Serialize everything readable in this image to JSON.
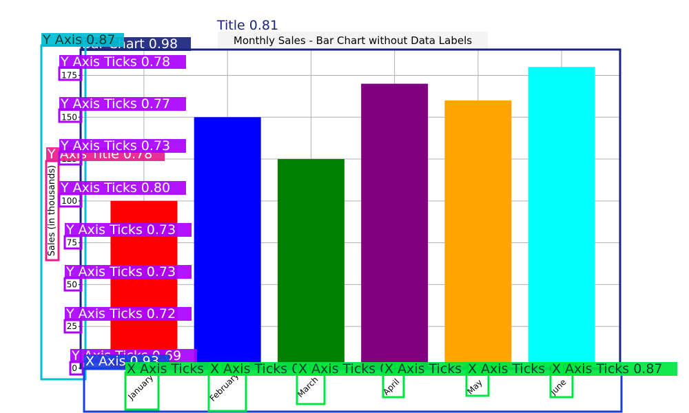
{
  "chart_data": {
    "type": "bar",
    "title": "Monthly Sales - Bar Chart without Data Labels",
    "ylabel": "Sales (in thousands)",
    "xlabel": "",
    "categories": [
      "January",
      "February",
      "March",
      "April",
      "May",
      "June"
    ],
    "values": [
      100,
      150,
      125,
      170,
      160,
      180
    ],
    "bar_colors": [
      "#ff0000",
      "#0000ff",
      "#008000",
      "#800080",
      "#ffa500",
      "#00ffff"
    ],
    "ylim": [
      0,
      190
    ],
    "yticks": [
      0,
      25,
      50,
      75,
      100,
      125,
      150,
      175
    ],
    "ytick_labels": [
      "0",
      "25",
      "50",
      "75",
      "100",
      "125",
      "150",
      "175"
    ],
    "grid": true,
    "legend": "none"
  },
  "annotations": [
    {
      "label": "Title 0.81",
      "color": "#1a237e"
    },
    {
      "label": "Bar Chart 0.98",
      "color": "#1a237e"
    },
    {
      "label": "Y Axis 0.87",
      "color": "#00bcd4"
    },
    {
      "label": "Y Axis Title 0.78",
      "color": "#e91e8c"
    },
    {
      "label": "Y Axis Ticks 0.78",
      "color": "#aa00ff"
    },
    {
      "label": "Y Axis Ticks 0.77",
      "color": "#aa00ff"
    },
    {
      "label": "Y Axis Ticks 0.73",
      "color": "#aa00ff"
    },
    {
      "label": "Y Axis Ticks 0.80",
      "color": "#aa00ff"
    },
    {
      "label": "Y Axis Ticks 0.73",
      "color": "#aa00ff"
    },
    {
      "label": "Y Axis Ticks 0.73",
      "color": "#aa00ff"
    },
    {
      "label": "Y Axis Ticks 0.72",
      "color": "#aa00ff"
    },
    {
      "label": "Y Axis Ticks 0.69",
      "color": "#aa00ff"
    },
    {
      "label": "X Axis 0.93",
      "color": "#1a3fe0"
    },
    {
      "label": "X Axis Ticks 0.90",
      "color": "#00e640"
    },
    {
      "label": "X Axis Ticks 0.87",
      "color": "#00e640"
    },
    {
      "label": "X Axis Ticks 0.86",
      "color": "#00e640"
    },
    {
      "label": "X Axis Ticks 0.86",
      "color": "#00e640"
    },
    {
      "label": "X Axis Ticks 0.87",
      "color": "#00e640"
    },
    {
      "label": "X Axis Ticks 0.87",
      "color": "#00e640"
    }
  ]
}
